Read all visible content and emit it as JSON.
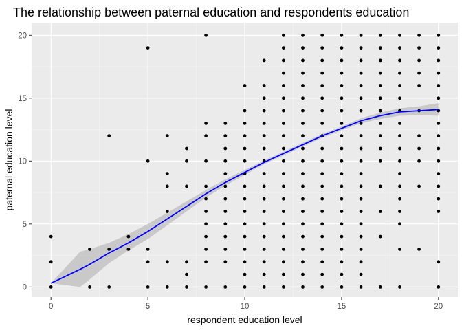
{
  "chart_data": {
    "type": "scatter",
    "title": "The relationship between paternal education and respondents education",
    "xlabel": "respondent education level",
    "ylabel": "paternal education level",
    "xlim": [
      -1,
      21
    ],
    "ylim": [
      -0.8,
      21
    ],
    "x_ticks": [
      "0",
      "5",
      "10",
      "15",
      "20"
    ],
    "y_ticks": [
      "0",
      "5",
      "10",
      "15",
      "20"
    ],
    "grid": true,
    "legend": "none",
    "colors": {
      "panel_background": "#ebebeb",
      "grid_major": "#ffffff",
      "grid_minor": "#f5f5f5",
      "points": "#000000",
      "smooth_line": "#0000ff",
      "confidence_band": "#b3b3b3",
      "tick_text": "#4d4d4d"
    },
    "points": [
      [
        0,
        0
      ],
      [
        0,
        2
      ],
      [
        0,
        4
      ],
      [
        2,
        0
      ],
      [
        2,
        3
      ],
      [
        3,
        0
      ],
      [
        3,
        3
      ],
      [
        3,
        12
      ],
      [
        4,
        3
      ],
      [
        4,
        4
      ],
      [
        5,
        0
      ],
      [
        5,
        2
      ],
      [
        5,
        3
      ],
      [
        5,
        10
      ],
      [
        5,
        19
      ],
      [
        6,
        0
      ],
      [
        6,
        2
      ],
      [
        6,
        6
      ],
      [
        6,
        8
      ],
      [
        6,
        9
      ],
      [
        6,
        12
      ],
      [
        7,
        0
      ],
      [
        7,
        1
      ],
      [
        7,
        2
      ],
      [
        7,
        8
      ],
      [
        7,
        10
      ],
      [
        7,
        11
      ],
      [
        8,
        0
      ],
      [
        8,
        2
      ],
      [
        8,
        3
      ],
      [
        8,
        4
      ],
      [
        8,
        5
      ],
      [
        8,
        6
      ],
      [
        8,
        7
      ],
      [
        8,
        8
      ],
      [
        8,
        10
      ],
      [
        8,
        12
      ],
      [
        8,
        13
      ],
      [
        8,
        20
      ],
      [
        9,
        0
      ],
      [
        9,
        2
      ],
      [
        9,
        3
      ],
      [
        9,
        4
      ],
      [
        9,
        5
      ],
      [
        9,
        6
      ],
      [
        9,
        7
      ],
      [
        9,
        8
      ],
      [
        9,
        9
      ],
      [
        9,
        10
      ],
      [
        9,
        11
      ],
      [
        9,
        12
      ],
      [
        9,
        13
      ],
      [
        10,
        0
      ],
      [
        10,
        1
      ],
      [
        10,
        2
      ],
      [
        10,
        3
      ],
      [
        10,
        4
      ],
      [
        10,
        5
      ],
      [
        10,
        6
      ],
      [
        10,
        7
      ],
      [
        10,
        8
      ],
      [
        10,
        9
      ],
      [
        10,
        10
      ],
      [
        10,
        11
      ],
      [
        10,
        12
      ],
      [
        10,
        13
      ],
      [
        10,
        14
      ],
      [
        10,
        16
      ],
      [
        11,
        0
      ],
      [
        11,
        1
      ],
      [
        11,
        2
      ],
      [
        11,
        3
      ],
      [
        11,
        4
      ],
      [
        11,
        5
      ],
      [
        11,
        6
      ],
      [
        11,
        7
      ],
      [
        11,
        8
      ],
      [
        11,
        9
      ],
      [
        11,
        10
      ],
      [
        11,
        11
      ],
      [
        11,
        12
      ],
      [
        11,
        13
      ],
      [
        11,
        14
      ],
      [
        11,
        15
      ],
      [
        11,
        16
      ],
      [
        11,
        18
      ],
      [
        12,
        0
      ],
      [
        12,
        1
      ],
      [
        12,
        2
      ],
      [
        12,
        3
      ],
      [
        12,
        4
      ],
      [
        12,
        5
      ],
      [
        12,
        6
      ],
      [
        12,
        7
      ],
      [
        12,
        8
      ],
      [
        12,
        9
      ],
      [
        12,
        10
      ],
      [
        12,
        11
      ],
      [
        12,
        12
      ],
      [
        12,
        13
      ],
      [
        12,
        14
      ],
      [
        12,
        15
      ],
      [
        12,
        16
      ],
      [
        12,
        17
      ],
      [
        12,
        18
      ],
      [
        12,
        19
      ],
      [
        12,
        20
      ],
      [
        13,
        0
      ],
      [
        13,
        1
      ],
      [
        13,
        2
      ],
      [
        13,
        3
      ],
      [
        13,
        4
      ],
      [
        13,
        5
      ],
      [
        13,
        6
      ],
      [
        13,
        7
      ],
      [
        13,
        8
      ],
      [
        13,
        9
      ],
      [
        13,
        10
      ],
      [
        13,
        11
      ],
      [
        13,
        12
      ],
      [
        13,
        13
      ],
      [
        13,
        14
      ],
      [
        13,
        15
      ],
      [
        13,
        16
      ],
      [
        13,
        17
      ],
      [
        13,
        18
      ],
      [
        13,
        19
      ],
      [
        13,
        20
      ],
      [
        14,
        0
      ],
      [
        14,
        1
      ],
      [
        14,
        2
      ],
      [
        14,
        3
      ],
      [
        14,
        4
      ],
      [
        14,
        5
      ],
      [
        14,
        6
      ],
      [
        14,
        7
      ],
      [
        14,
        8
      ],
      [
        14,
        9
      ],
      [
        14,
        10
      ],
      [
        14,
        11
      ],
      [
        14,
        12
      ],
      [
        14,
        13
      ],
      [
        14,
        14
      ],
      [
        14,
        15
      ],
      [
        14,
        16
      ],
      [
        14,
        17
      ],
      [
        14,
        18
      ],
      [
        14,
        19
      ],
      [
        14,
        20
      ],
      [
        15,
        0
      ],
      [
        15,
        1
      ],
      [
        15,
        2
      ],
      [
        15,
        3
      ],
      [
        15,
        4
      ],
      [
        15,
        5
      ],
      [
        15,
        6
      ],
      [
        15,
        7
      ],
      [
        15,
        8
      ],
      [
        15,
        9
      ],
      [
        15,
        10
      ],
      [
        15,
        11
      ],
      [
        15,
        12
      ],
      [
        15,
        13
      ],
      [
        15,
        14
      ],
      [
        15,
        15
      ],
      [
        15,
        16
      ],
      [
        15,
        17
      ],
      [
        15,
        18
      ],
      [
        15,
        19
      ],
      [
        15,
        20
      ],
      [
        16,
        0
      ],
      [
        16,
        1
      ],
      [
        16,
        2
      ],
      [
        16,
        3
      ],
      [
        16,
        4
      ],
      [
        16,
        5
      ],
      [
        16,
        6
      ],
      [
        16,
        7
      ],
      [
        16,
        8
      ],
      [
        16,
        9
      ],
      [
        16,
        10
      ],
      [
        16,
        11
      ],
      [
        16,
        12
      ],
      [
        16,
        13
      ],
      [
        16,
        14
      ],
      [
        16,
        15
      ],
      [
        16,
        16
      ],
      [
        16,
        17
      ],
      [
        16,
        18
      ],
      [
        16,
        19
      ],
      [
        16,
        20
      ],
      [
        17,
        0
      ],
      [
        17,
        4
      ],
      [
        17,
        6
      ],
      [
        17,
        8
      ],
      [
        17,
        10
      ],
      [
        17,
        11
      ],
      [
        17,
        12
      ],
      [
        17,
        13
      ],
      [
        17,
        14
      ],
      [
        17,
        15
      ],
      [
        17,
        16
      ],
      [
        17,
        17
      ],
      [
        17,
        18
      ],
      [
        17,
        19
      ],
      [
        17,
        20
      ],
      [
        18,
        0
      ],
      [
        18,
        3
      ],
      [
        18,
        5
      ],
      [
        18,
        6
      ],
      [
        18,
        7
      ],
      [
        18,
        8
      ],
      [
        18,
        9
      ],
      [
        18,
        10
      ],
      [
        18,
        11
      ],
      [
        18,
        12
      ],
      [
        18,
        13
      ],
      [
        18,
        14
      ],
      [
        18,
        15
      ],
      [
        18,
        16
      ],
      [
        18,
        17
      ],
      [
        18,
        18
      ],
      [
        18,
        19
      ],
      [
        18,
        20
      ],
      [
        19,
        3
      ],
      [
        19,
        8
      ],
      [
        19,
        10
      ],
      [
        19,
        11
      ],
      [
        19,
        12
      ],
      [
        19,
        14
      ],
      [
        19,
        16
      ],
      [
        19,
        17
      ],
      [
        19,
        18
      ],
      [
        19,
        19
      ],
      [
        19,
        20
      ],
      [
        20,
        0
      ],
      [
        20,
        2
      ],
      [
        20,
        6
      ],
      [
        20,
        7
      ],
      [
        20,
        8
      ],
      [
        20,
        9
      ],
      [
        20,
        10
      ],
      [
        20,
        11
      ],
      [
        20,
        12
      ],
      [
        20,
        13
      ],
      [
        20,
        14
      ],
      [
        20,
        15
      ],
      [
        20,
        16
      ],
      [
        20,
        17
      ],
      [
        20,
        18
      ],
      [
        20,
        19
      ],
      [
        20,
        20
      ]
    ],
    "smooth": [
      {
        "x": 0,
        "y": 0.3,
        "lo": 0.3,
        "hi": 0.3
      },
      {
        "x": 1.5,
        "y": 1.4,
        "lo": 0.0,
        "hi": 2.8
      },
      {
        "x": 2,
        "y": 1.8,
        "lo": 0.6,
        "hi": 3.0
      },
      {
        "x": 3,
        "y": 2.7,
        "lo": 1.9,
        "hi": 3.5
      },
      {
        "x": 4,
        "y": 3.5,
        "lo": 2.9,
        "hi": 4.2
      },
      {
        "x": 5,
        "y": 4.4,
        "lo": 3.8,
        "hi": 5.0
      },
      {
        "x": 6,
        "y": 5.4,
        "lo": 4.9,
        "hi": 5.9
      },
      {
        "x": 7,
        "y": 6.4,
        "lo": 6.0,
        "hi": 6.8
      },
      {
        "x": 8,
        "y": 7.4,
        "lo": 7.1,
        "hi": 7.7
      },
      {
        "x": 9,
        "y": 8.3,
        "lo": 8.05,
        "hi": 8.55
      },
      {
        "x": 10,
        "y": 9.1,
        "lo": 8.9,
        "hi": 9.3
      },
      {
        "x": 11,
        "y": 9.9,
        "lo": 9.75,
        "hi": 10.05
      },
      {
        "x": 12,
        "y": 10.6,
        "lo": 10.45,
        "hi": 10.75
      },
      {
        "x": 13,
        "y": 11.3,
        "lo": 11.15,
        "hi": 11.45
      },
      {
        "x": 14,
        "y": 12.0,
        "lo": 11.85,
        "hi": 12.15
      },
      {
        "x": 15,
        "y": 12.6,
        "lo": 12.45,
        "hi": 12.75
      },
      {
        "x": 16,
        "y": 13.2,
        "lo": 13.0,
        "hi": 13.4
      },
      {
        "x": 17,
        "y": 13.6,
        "lo": 13.35,
        "hi": 13.85
      },
      {
        "x": 18,
        "y": 13.9,
        "lo": 13.6,
        "hi": 14.2
      },
      {
        "x": 19,
        "y": 14.0,
        "lo": 13.65,
        "hi": 14.35
      },
      {
        "x": 20,
        "y": 14.1,
        "lo": 13.6,
        "hi": 14.6
      }
    ]
  }
}
